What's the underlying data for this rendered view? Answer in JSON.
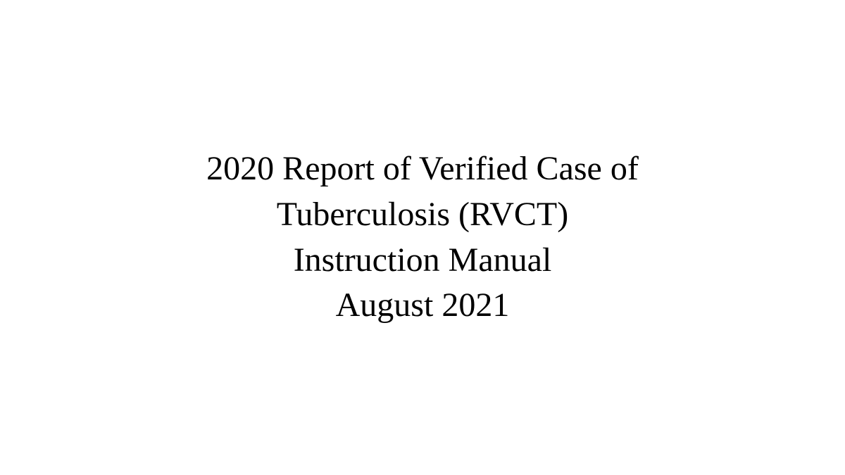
{
  "document": {
    "title_line1": "2020 Report of Verified Case of",
    "title_line2": "Tuberculosis (RVCT)",
    "title_line3": "Instruction Manual",
    "title_line4": "August 2021"
  },
  "styling": {
    "background_color": "#ffffff",
    "text_color": "#000000",
    "font_family": "Georgia, Times New Roman, serif",
    "font_size_pt": 36,
    "font_weight": 400,
    "line_height": 1.35,
    "text_align": "center"
  }
}
